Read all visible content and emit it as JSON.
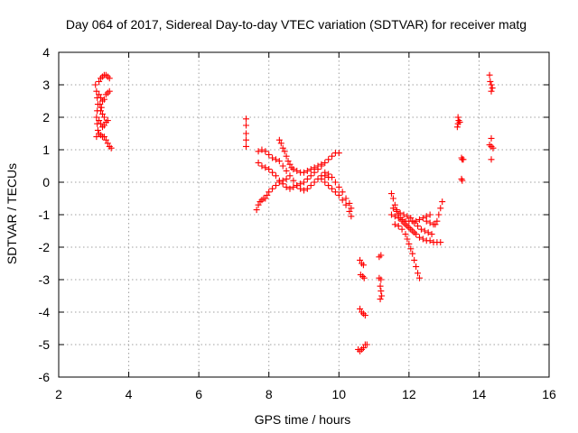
{
  "colors": {
    "series": "#ff0000"
  },
  "chart_data": {
    "type": "scatter",
    "title": "Day 064 of 2017, Sidereal Day-to-day VTEC variation (SDTVAR) for receiver matg",
    "xlabel": "GPS time / hours",
    "ylabel": "SDTVAR / TECUs",
    "xlim": [
      2,
      16
    ],
    "ylim": [
      -6,
      4
    ],
    "xticks": [
      2,
      4,
      6,
      8,
      10,
      12,
      14,
      16
    ],
    "yticks": [
      -6,
      -5,
      -4,
      -3,
      -2,
      -1,
      0,
      1,
      2,
      3,
      4
    ],
    "xtick_labels": [
      "2",
      "4",
      "6",
      "8",
      "10",
      "12",
      "14",
      "16"
    ],
    "ytick_labels": [
      "-6",
      "-5",
      "-4",
      "-3",
      "-2",
      "-1",
      "0",
      "1",
      "2",
      "3",
      "4"
    ],
    "grid": true,
    "marker": "+",
    "series": [
      {
        "name": "SDTVAR",
        "points": [
          [
            3.05,
            3.0
          ],
          [
            3.08,
            2.8
          ],
          [
            3.1,
            2.6
          ],
          [
            3.12,
            2.4
          ],
          [
            3.1,
            2.2
          ],
          [
            3.08,
            2.0
          ],
          [
            3.1,
            1.8
          ],
          [
            3.12,
            1.6
          ],
          [
            3.08,
            1.4
          ],
          [
            3.15,
            3.1
          ],
          [
            3.2,
            3.2
          ],
          [
            3.25,
            3.25
          ],
          [
            3.3,
            3.3
          ],
          [
            3.35,
            3.3
          ],
          [
            3.4,
            3.25
          ],
          [
            3.45,
            3.2
          ],
          [
            3.15,
            2.7
          ],
          [
            3.2,
            2.6
          ],
          [
            3.25,
            2.5
          ],
          [
            3.3,
            2.55
          ],
          [
            3.35,
            2.7
          ],
          [
            3.4,
            2.75
          ],
          [
            3.45,
            2.8
          ],
          [
            3.15,
            1.9
          ],
          [
            3.2,
            1.8
          ],
          [
            3.25,
            1.7
          ],
          [
            3.3,
            1.75
          ],
          [
            3.35,
            1.85
          ],
          [
            3.4,
            1.9
          ],
          [
            3.15,
            1.5
          ],
          [
            3.2,
            1.45
          ],
          [
            3.25,
            1.4
          ],
          [
            3.3,
            1.4
          ],
          [
            3.35,
            1.3
          ],
          [
            3.4,
            1.2
          ],
          [
            3.45,
            1.1
          ],
          [
            3.5,
            1.05
          ],
          [
            3.2,
            2.2
          ],
          [
            3.25,
            2.1
          ],
          [
            3.3,
            2.0
          ],
          [
            3.18,
            2.4
          ],
          [
            3.22,
            2.3
          ],
          [
            7.35,
            1.95
          ],
          [
            7.35,
            1.75
          ],
          [
            7.35,
            1.5
          ],
          [
            7.35,
            1.3
          ],
          [
            7.35,
            1.1
          ],
          [
            7.65,
            -0.85
          ],
          [
            7.7,
            -0.7
          ],
          [
            7.75,
            -0.6
          ],
          [
            7.8,
            -0.55
          ],
          [
            7.85,
            -0.5
          ],
          [
            7.9,
            -0.5
          ],
          [
            7.95,
            -0.4
          ],
          [
            8.0,
            -0.3
          ],
          [
            8.1,
            -0.2
          ],
          [
            8.2,
            -0.1
          ],
          [
            8.3,
            0.0
          ],
          [
            8.4,
            0.05
          ],
          [
            8.5,
            0.1
          ],
          [
            7.7,
            0.6
          ],
          [
            7.8,
            0.5
          ],
          [
            7.9,
            0.45
          ],
          [
            8.0,
            0.4
          ],
          [
            8.1,
            0.3
          ],
          [
            8.2,
            0.2
          ],
          [
            8.3,
            0.05
          ],
          [
            8.4,
            -0.05
          ],
          [
            8.5,
            -0.15
          ],
          [
            8.6,
            -0.2
          ],
          [
            8.7,
            -0.15
          ],
          [
            8.8,
            -0.1
          ],
          [
            8.9,
            -0.05
          ],
          [
            9.0,
            0.0
          ],
          [
            9.1,
            0.1
          ],
          [
            9.2,
            0.2
          ],
          [
            9.3,
            0.3
          ],
          [
            9.4,
            0.4
          ],
          [
            9.5,
            0.5
          ],
          [
            9.6,
            0.6
          ],
          [
            9.7,
            0.7
          ],
          [
            9.8,
            0.8
          ],
          [
            9.9,
            0.9
          ],
          [
            10.0,
            0.9
          ],
          [
            7.7,
            0.95
          ],
          [
            7.8,
            1.0
          ],
          [
            7.9,
            0.95
          ],
          [
            8.0,
            0.85
          ],
          [
            8.1,
            0.75
          ],
          [
            8.2,
            0.7
          ],
          [
            8.3,
            0.65
          ],
          [
            8.4,
            0.5
          ],
          [
            8.5,
            0.35
          ],
          [
            8.6,
            0.2
          ],
          [
            8.7,
            0.05
          ],
          [
            8.8,
            -0.1
          ],
          [
            8.9,
            -0.2
          ],
          [
            9.0,
            -0.25
          ],
          [
            9.1,
            -0.2
          ],
          [
            9.2,
            -0.1
          ],
          [
            9.3,
            0.0
          ],
          [
            9.4,
            0.1
          ],
          [
            9.5,
            0.2
          ],
          [
            9.6,
            0.2
          ],
          [
            9.7,
            0.15
          ],
          [
            8.3,
            1.3
          ],
          [
            8.35,
            1.2
          ],
          [
            8.4,
            1.05
          ],
          [
            8.45,
            0.95
          ],
          [
            8.5,
            0.8
          ],
          [
            8.55,
            0.65
          ],
          [
            8.6,
            0.55
          ],
          [
            8.65,
            0.45
          ],
          [
            8.7,
            0.4
          ],
          [
            8.8,
            0.35
          ],
          [
            8.9,
            0.3
          ],
          [
            9.0,
            0.3
          ],
          [
            9.1,
            0.35
          ],
          [
            9.2,
            0.4
          ],
          [
            9.3,
            0.45
          ],
          [
            9.4,
            0.5
          ],
          [
            9.5,
            0.55
          ],
          [
            9.5,
            0.1
          ],
          [
            9.6,
            0.0
          ],
          [
            9.7,
            -0.1
          ],
          [
            9.8,
            -0.2
          ],
          [
            9.9,
            -0.3
          ],
          [
            10.0,
            -0.4
          ],
          [
            10.1,
            -0.55
          ],
          [
            10.2,
            -0.7
          ],
          [
            10.3,
            -0.9
          ],
          [
            10.35,
            -1.05
          ],
          [
            9.6,
            0.3
          ],
          [
            9.7,
            0.25
          ],
          [
            9.8,
            0.15
          ],
          [
            9.9,
            0.0
          ],
          [
            10.0,
            -0.15
          ],
          [
            10.1,
            -0.3
          ],
          [
            10.2,
            -0.5
          ],
          [
            10.3,
            -0.65
          ],
          [
            10.35,
            -0.8
          ],
          [
            10.6,
            -2.4
          ],
          [
            10.65,
            -2.5
          ],
          [
            10.7,
            -2.55
          ],
          [
            10.62,
            -2.85
          ],
          [
            10.68,
            -2.9
          ],
          [
            10.72,
            -2.95
          ],
          [
            10.6,
            -3.9
          ],
          [
            10.65,
            -4.0
          ],
          [
            10.7,
            -4.05
          ],
          [
            10.75,
            -4.1
          ],
          [
            10.55,
            -5.15
          ],
          [
            10.6,
            -5.2
          ],
          [
            10.65,
            -5.15
          ],
          [
            10.7,
            -5.1
          ],
          [
            10.75,
            -5.0
          ],
          [
            10.8,
            -5.0
          ],
          [
            11.15,
            -2.3
          ],
          [
            11.2,
            -2.25
          ],
          [
            11.15,
            -2.95
          ],
          [
            11.2,
            -3.0
          ],
          [
            11.18,
            -3.2
          ],
          [
            11.2,
            -3.35
          ],
          [
            11.22,
            -3.5
          ],
          [
            11.18,
            -3.6
          ],
          [
            11.5,
            -0.35
          ],
          [
            11.55,
            -0.5
          ],
          [
            11.6,
            -0.7
          ],
          [
            11.65,
            -0.85
          ],
          [
            11.7,
            -1.0
          ],
          [
            11.75,
            -1.1
          ],
          [
            11.8,
            -1.2
          ],
          [
            11.85,
            -1.25
          ],
          [
            11.9,
            -1.3
          ],
          [
            11.95,
            -1.35
          ],
          [
            12.0,
            -1.4
          ],
          [
            12.05,
            -1.45
          ],
          [
            12.1,
            -1.5
          ],
          [
            12.15,
            -1.55
          ],
          [
            12.2,
            -1.6
          ],
          [
            12.3,
            -1.7
          ],
          [
            12.4,
            -1.75
          ],
          [
            12.5,
            -1.8
          ],
          [
            12.6,
            -1.8
          ],
          [
            12.7,
            -1.85
          ],
          [
            12.8,
            -1.85
          ],
          [
            12.9,
            -1.85
          ],
          [
            11.5,
            -1.0
          ],
          [
            11.6,
            -1.05
          ],
          [
            11.7,
            -1.1
          ],
          [
            11.8,
            -1.15
          ],
          [
            11.9,
            -1.2
          ],
          [
            12.0,
            -1.2
          ],
          [
            12.1,
            -1.2
          ],
          [
            12.2,
            -1.2
          ],
          [
            12.3,
            -1.15
          ],
          [
            12.4,
            -1.1
          ],
          [
            12.5,
            -1.05
          ],
          [
            12.6,
            -1.0
          ],
          [
            11.6,
            -1.3
          ],
          [
            11.7,
            -1.35
          ],
          [
            11.8,
            -1.45
          ],
          [
            11.9,
            -1.6
          ],
          [
            11.95,
            -1.75
          ],
          [
            12.0,
            -1.9
          ],
          [
            12.05,
            -2.05
          ],
          [
            12.1,
            -2.2
          ],
          [
            12.15,
            -2.4
          ],
          [
            12.2,
            -2.6
          ],
          [
            12.25,
            -2.8
          ],
          [
            12.3,
            -2.95
          ],
          [
            12.5,
            -1.2
          ],
          [
            12.6,
            -1.25
          ],
          [
            12.7,
            -1.3
          ],
          [
            12.75,
            -1.3
          ],
          [
            12.8,
            -1.2
          ],
          [
            12.85,
            -1.0
          ],
          [
            12.9,
            -0.8
          ],
          [
            12.95,
            -0.6
          ],
          [
            11.55,
            -0.8
          ],
          [
            11.65,
            -0.9
          ],
          [
            11.75,
            -0.95
          ],
          [
            11.85,
            -1.0
          ],
          [
            11.95,
            -1.05
          ],
          [
            12.05,
            -1.1
          ],
          [
            12.15,
            -1.25
          ],
          [
            12.25,
            -1.35
          ],
          [
            12.35,
            -1.45
          ],
          [
            12.45,
            -1.5
          ],
          [
            12.55,
            -1.55
          ],
          [
            12.65,
            -1.6
          ],
          [
            13.4,
            2.0
          ],
          [
            13.42,
            1.9
          ],
          [
            13.4,
            1.8
          ],
          [
            13.45,
            1.85
          ],
          [
            13.38,
            1.7
          ],
          [
            13.5,
            0.75
          ],
          [
            13.52,
            0.7
          ],
          [
            13.55,
            0.7
          ],
          [
            13.5,
            0.1
          ],
          [
            13.52,
            0.05
          ],
          [
            14.3,
            3.3
          ],
          [
            14.32,
            3.1
          ],
          [
            14.35,
            3.0
          ],
          [
            14.38,
            2.9
          ],
          [
            14.35,
            2.8
          ],
          [
            14.35,
            1.35
          ],
          [
            14.3,
            1.15
          ],
          [
            14.35,
            1.1
          ],
          [
            14.4,
            1.05
          ],
          [
            14.35,
            0.7
          ]
        ]
      }
    ]
  }
}
